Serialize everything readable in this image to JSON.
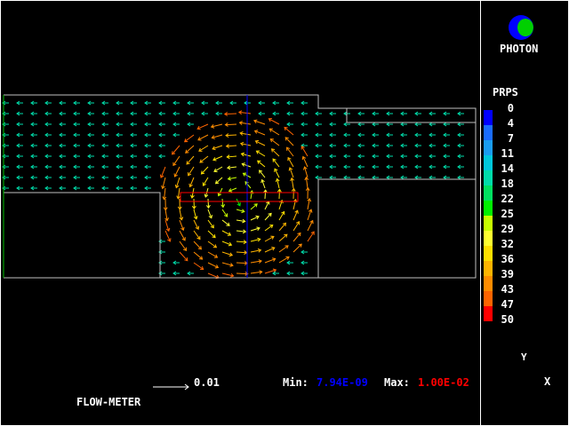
{
  "title": "FLOW-METER",
  "logo": {
    "text": "PHOTON"
  },
  "legend": {
    "title": "PRPS",
    "labels": [
      "0",
      "4",
      "7",
      "11",
      "14",
      "18",
      "22",
      "25",
      "29",
      "32",
      "36",
      "39",
      "43",
      "47",
      "50"
    ],
    "colors": [
      "#0000ff",
      "#1a6cff",
      "#1a9cf0",
      "#00c8dc",
      "#00dcaa",
      "#00e060",
      "#00f000",
      "#c8ff00",
      "#ffff30",
      "#ffe000",
      "#ffb400",
      "#ff8c00",
      "#ff6400",
      "#ff0000"
    ]
  },
  "scale": {
    "value": "0.01"
  },
  "range": {
    "min_label": "Min:",
    "min": "7.94E-09",
    "max_label": "Max:",
    "max": "1.00E-02",
    "min_color": "#0000ff",
    "max_color": "#ff0000"
  },
  "axes": {
    "y": "Y",
    "x": "X"
  }
}
